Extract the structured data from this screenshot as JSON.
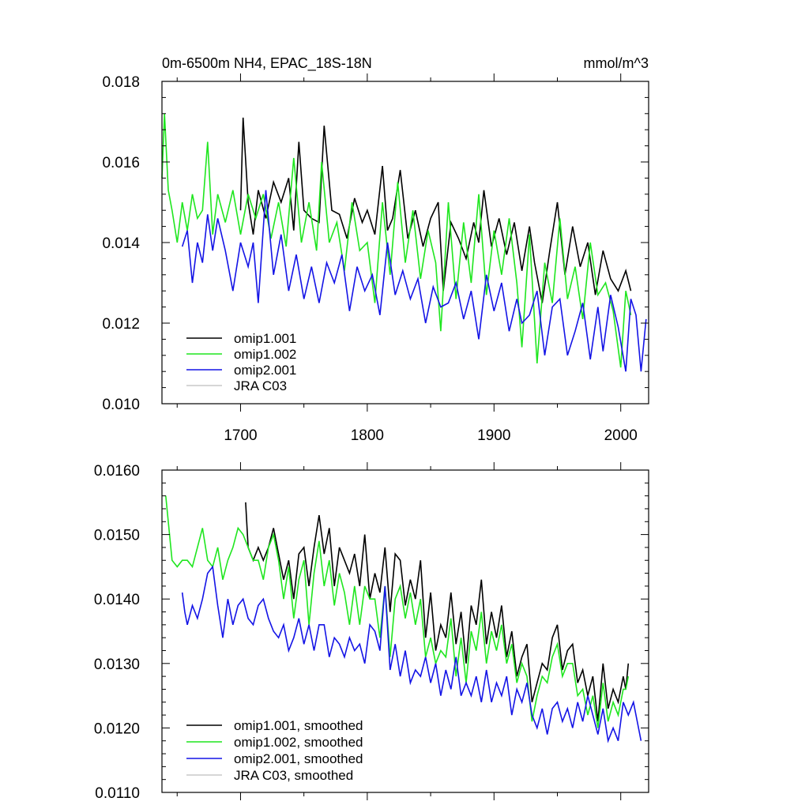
{
  "chart_data": [
    {
      "type": "line",
      "title_left": "0m-6500m NH4, EPAC_18S-18N",
      "title_right": "mmol/m^3",
      "xlim": [
        1638,
        2022
      ],
      "ylim": [
        0.01,
        0.018
      ],
      "y_ticks": [
        0.01,
        0.012,
        0.014,
        0.016,
        0.018
      ],
      "y_tick_labels": [
        "0.010",
        "0.012",
        "0.014",
        "0.016",
        "0.018"
      ],
      "x_ticks": [
        1700,
        1800,
        1900,
        2000
      ],
      "x_tick_labels": [
        "1700",
        "1800",
        "1900",
        "2000"
      ],
      "legend_position": "bottom-left",
      "series": [
        {
          "name": "omip1.001",
          "color": "#000000",
          "x": [
            1700,
            1702,
            1706,
            1710,
            1714,
            1720,
            1726,
            1732,
            1738,
            1742,
            1746,
            1750,
            1756,
            1762,
            1766,
            1772,
            1778,
            1784,
            1790,
            1796,
            1800,
            1806,
            1812,
            1816,
            1820,
            1826,
            1832,
            1838,
            1844,
            1850,
            1856,
            1860,
            1866,
            1872,
            1878,
            1884,
            1888,
            1892,
            1898,
            1904,
            1910,
            1916,
            1922,
            1928,
            1932,
            1938,
            1944,
            1950,
            1956,
            1962,
            1968,
            1974,
            1980,
            1986,
            1992,
            1998,
            2004,
            2008
          ],
          "values": [
            0.0148,
            0.0171,
            0.015,
            0.0142,
            0.0153,
            0.0146,
            0.0155,
            0.015,
            0.0156,
            0.0143,
            0.0165,
            0.0148,
            0.0146,
            0.0145,
            0.0169,
            0.0148,
            0.0147,
            0.0141,
            0.0151,
            0.0145,
            0.0148,
            0.0142,
            0.0159,
            0.0143,
            0.0146,
            0.0158,
            0.0141,
            0.0148,
            0.0139,
            0.0146,
            0.015,
            0.0128,
            0.0145,
            0.0141,
            0.0136,
            0.0145,
            0.014,
            0.0153,
            0.0139,
            0.0146,
            0.0137,
            0.0145,
            0.0133,
            0.0144,
            0.0135,
            0.0125,
            0.0138,
            0.015,
            0.0132,
            0.0144,
            0.0134,
            0.014,
            0.0127,
            0.0138,
            0.0131,
            0.0128,
            0.0133,
            0.0128
          ]
        },
        {
          "name": "omip1.002",
          "color": "#1fe61f",
          "x": [
            1638,
            1640,
            1643,
            1646,
            1650,
            1654,
            1658,
            1662,
            1666,
            1670,
            1674,
            1678,
            1682,
            1688,
            1694,
            1700,
            1706,
            1712,
            1718,
            1724,
            1730,
            1736,
            1742,
            1748,
            1754,
            1760,
            1764,
            1770,
            1776,
            1782,
            1788,
            1794,
            1800,
            1806,
            1812,
            1818,
            1824,
            1830,
            1836,
            1842,
            1848,
            1854,
            1858,
            1864,
            1870,
            1876,
            1882,
            1888,
            1894,
            1900,
            1906,
            1912,
            1918,
            1922,
            1928,
            1934,
            1940,
            1946,
            1952,
            1958,
            1964,
            1970,
            1976,
            1982,
            1988,
            1994,
            2000,
            2004,
            2008
          ],
          "values": [
            0.0156,
            0.0172,
            0.0153,
            0.0148,
            0.014,
            0.015,
            0.0143,
            0.0152,
            0.0146,
            0.0148,
            0.0165,
            0.0142,
            0.0152,
            0.0145,
            0.0153,
            0.0142,
            0.0152,
            0.0146,
            0.0152,
            0.0141,
            0.015,
            0.0139,
            0.0161,
            0.014,
            0.015,
            0.0138,
            0.016,
            0.014,
            0.0145,
            0.0133,
            0.015,
            0.0138,
            0.014,
            0.0125,
            0.015,
            0.0132,
            0.0155,
            0.0135,
            0.0148,
            0.0131,
            0.0143,
            0.0135,
            0.0118,
            0.015,
            0.0126,
            0.0145,
            0.013,
            0.0152,
            0.0127,
            0.0143,
            0.0132,
            0.0146,
            0.013,
            0.0114,
            0.0142,
            0.011,
            0.0135,
            0.0125,
            0.0146,
            0.0126,
            0.0134,
            0.0121,
            0.014,
            0.0127,
            0.013,
            0.0123,
            0.0109,
            0.0128,
            0.0122
          ]
        },
        {
          "name": "omip2.001",
          "color": "#1414e6",
          "x": [
            1654,
            1658,
            1662,
            1666,
            1670,
            1674,
            1678,
            1682,
            1688,
            1694,
            1700,
            1706,
            1710,
            1714,
            1720,
            1726,
            1732,
            1738,
            1744,
            1750,
            1756,
            1762,
            1768,
            1774,
            1780,
            1786,
            1792,
            1798,
            1804,
            1810,
            1816,
            1822,
            1828,
            1834,
            1840,
            1846,
            1852,
            1858,
            1864,
            1870,
            1876,
            1882,
            1888,
            1894,
            1900,
            1906,
            1912,
            1918,
            1922,
            1928,
            1934,
            1940,
            1946,
            1952,
            1958,
            1964,
            1970,
            1976,
            1982,
            1986,
            1992,
            1998,
            2004,
            2008,
            2012,
            2016,
            2020
          ],
          "values": [
            0.0139,
            0.0143,
            0.013,
            0.014,
            0.0135,
            0.0147,
            0.0138,
            0.0146,
            0.0138,
            0.0128,
            0.014,
            0.0134,
            0.014,
            0.0125,
            0.0153,
            0.0132,
            0.0142,
            0.0128,
            0.0137,
            0.0126,
            0.0134,
            0.0125,
            0.0135,
            0.013,
            0.0137,
            0.0123,
            0.0134,
            0.0128,
            0.0132,
            0.0122,
            0.014,
            0.0127,
            0.0133,
            0.0126,
            0.0131,
            0.012,
            0.0129,
            0.0124,
            0.0125,
            0.013,
            0.0121,
            0.0128,
            0.0116,
            0.0132,
            0.0123,
            0.013,
            0.0118,
            0.0126,
            0.012,
            0.0122,
            0.0128,
            0.0112,
            0.0124,
            0.0126,
            0.0112,
            0.0118,
            0.0125,
            0.0111,
            0.0124,
            0.0113,
            0.0127,
            0.0119,
            0.0108,
            0.0126,
            0.0122,
            0.0108,
            0.0121
          ]
        },
        {
          "name": "JRA C03",
          "color": "#c8c8c8",
          "x": [],
          "values": []
        }
      ]
    },
    {
      "type": "line",
      "xlim": [
        1638,
        2022
      ],
      "ylim": [
        0.011,
        0.016
      ],
      "y_ticks": [
        0.011,
        0.012,
        0.013,
        0.014,
        0.015,
        0.016
      ],
      "y_tick_labels": [
        "0.0110",
        "0.0120",
        "0.0130",
        "0.0140",
        "0.0150",
        "0.0160"
      ],
      "x_ticks": [
        1700,
        1800,
        1900,
        2000
      ],
      "x_tick_labels": [],
      "legend_position": "bottom-left",
      "series": [
        {
          "name": "omip1.001, smoothed",
          "color": "#000000",
          "x": [
            1704,
            1706,
            1710,
            1714,
            1718,
            1722,
            1726,
            1730,
            1734,
            1738,
            1742,
            1746,
            1750,
            1754,
            1758,
            1762,
            1766,
            1770,
            1774,
            1778,
            1782,
            1786,
            1790,
            1794,
            1798,
            1802,
            1806,
            1810,
            1814,
            1818,
            1822,
            1826,
            1830,
            1834,
            1838,
            1842,
            1846,
            1850,
            1854,
            1858,
            1862,
            1866,
            1870,
            1874,
            1878,
            1882,
            1886,
            1890,
            1894,
            1898,
            1902,
            1906,
            1910,
            1914,
            1918,
            1922,
            1926,
            1930,
            1934,
            1938,
            1942,
            1946,
            1950,
            1954,
            1958,
            1962,
            1966,
            1970,
            1974,
            1978,
            1982,
            1986,
            1990,
            1994,
            1998,
            2002,
            2004,
            2006
          ],
          "values": [
            0.0155,
            0.0148,
            0.0146,
            0.0148,
            0.0146,
            0.0148,
            0.0151,
            0.0147,
            0.0143,
            0.0146,
            0.014,
            0.0147,
            0.0148,
            0.0142,
            0.0148,
            0.0153,
            0.0147,
            0.0151,
            0.0142,
            0.0148,
            0.0146,
            0.0144,
            0.0147,
            0.0142,
            0.015,
            0.014,
            0.0144,
            0.0141,
            0.0148,
            0.0138,
            0.0147,
            0.0146,
            0.0139,
            0.0143,
            0.014,
            0.0146,
            0.0134,
            0.0141,
            0.0132,
            0.0136,
            0.0134,
            0.0141,
            0.0133,
            0.0138,
            0.013,
            0.0139,
            0.0136,
            0.0143,
            0.0133,
            0.0138,
            0.0134,
            0.0139,
            0.0131,
            0.0135,
            0.0128,
            0.0131,
            0.0133,
            0.0124,
            0.0127,
            0.013,
            0.0129,
            0.0134,
            0.0136,
            0.0129,
            0.0132,
            0.0133,
            0.0127,
            0.0129,
            0.0125,
            0.0128,
            0.0121,
            0.013,
            0.0123,
            0.0126,
            0.0124,
            0.0128,
            0.0126,
            0.013
          ]
        },
        {
          "name": "omip1.002, smoothed",
          "color": "#1fe61f",
          "x": [
            1641,
            1643,
            1646,
            1650,
            1654,
            1658,
            1662,
            1666,
            1670,
            1674,
            1678,
            1682,
            1686,
            1690,
            1694,
            1698,
            1702,
            1706,
            1710,
            1714,
            1718,
            1722,
            1726,
            1730,
            1734,
            1738,
            1742,
            1746,
            1750,
            1754,
            1758,
            1762,
            1766,
            1770,
            1774,
            1778,
            1782,
            1786,
            1790,
            1794,
            1798,
            1802,
            1806,
            1810,
            1814,
            1818,
            1822,
            1826,
            1830,
            1834,
            1838,
            1842,
            1846,
            1850,
            1854,
            1858,
            1862,
            1866,
            1870,
            1874,
            1878,
            1882,
            1886,
            1890,
            1894,
            1898,
            1902,
            1906,
            1910,
            1914,
            1918,
            1922,
            1926,
            1930,
            1934,
            1938,
            1942,
            1946,
            1950,
            1954,
            1958,
            1962,
            1966,
            1970,
            1974,
            1978,
            1982,
            1986,
            1990,
            1994,
            1998,
            2002,
            2004,
            2006
          ],
          "values": [
            0.0156,
            0.0152,
            0.0146,
            0.0145,
            0.0146,
            0.0146,
            0.0145,
            0.0148,
            0.0151,
            0.0146,
            0.0145,
            0.0148,
            0.0143,
            0.0146,
            0.0148,
            0.0151,
            0.015,
            0.0148,
            0.0146,
            0.0146,
            0.0143,
            0.0148,
            0.015,
            0.0146,
            0.014,
            0.0145,
            0.0137,
            0.0143,
            0.0146,
            0.0136,
            0.0144,
            0.0149,
            0.0142,
            0.0146,
            0.0139,
            0.0144,
            0.0141,
            0.0136,
            0.0142,
            0.0136,
            0.0142,
            0.014,
            0.014,
            0.0134,
            0.0142,
            0.0131,
            0.014,
            0.0142,
            0.0137,
            0.0141,
            0.0136,
            0.014,
            0.0131,
            0.0134,
            0.013,
            0.0132,
            0.0131,
            0.0137,
            0.0128,
            0.0134,
            0.0127,
            0.0135,
            0.0132,
            0.0138,
            0.013,
            0.0135,
            0.0132,
            0.0136,
            0.013,
            0.0133,
            0.0127,
            0.013,
            0.0128,
            0.0121,
            0.0125,
            0.0128,
            0.0127,
            0.0131,
            0.0133,
            0.0128,
            0.013,
            0.013,
            0.0125,
            0.0126,
            0.0122,
            0.0125,
            0.012,
            0.0127,
            0.0121,
            0.0124,
            0.0122,
            0.0126,
            0.0126,
            0.0128
          ]
        },
        {
          "name": "omip2.001, smoothed",
          "color": "#1414e6",
          "x": [
            1654,
            1656,
            1658,
            1662,
            1666,
            1670,
            1674,
            1678,
            1682,
            1686,
            1690,
            1694,
            1698,
            1702,
            1706,
            1710,
            1714,
            1718,
            1722,
            1726,
            1730,
            1734,
            1738,
            1742,
            1746,
            1750,
            1754,
            1758,
            1762,
            1766,
            1770,
            1774,
            1778,
            1782,
            1786,
            1790,
            1794,
            1798,
            1802,
            1806,
            1810,
            1814,
            1818,
            1822,
            1826,
            1830,
            1834,
            1838,
            1842,
            1846,
            1850,
            1854,
            1858,
            1862,
            1866,
            1870,
            1874,
            1878,
            1882,
            1886,
            1890,
            1894,
            1898,
            1902,
            1906,
            1910,
            1914,
            1918,
            1922,
            1926,
            1930,
            1934,
            1938,
            1942,
            1946,
            1950,
            1954,
            1958,
            1962,
            1966,
            1970,
            1974,
            1978,
            1982,
            1986,
            1990,
            1994,
            1998,
            2002,
            2006,
            2010,
            2014,
            2016
          ],
          "values": [
            0.0141,
            0.0138,
            0.0136,
            0.0139,
            0.0137,
            0.014,
            0.0144,
            0.0145,
            0.0139,
            0.0134,
            0.014,
            0.0136,
            0.0139,
            0.014,
            0.0137,
            0.0136,
            0.0139,
            0.014,
            0.0137,
            0.0135,
            0.0134,
            0.0136,
            0.0132,
            0.0134,
            0.0137,
            0.0133,
            0.0136,
            0.0132,
            0.0136,
            0.0136,
            0.0131,
            0.0134,
            0.0133,
            0.0131,
            0.0134,
            0.0132,
            0.0133,
            0.013,
            0.0136,
            0.0135,
            0.0132,
            0.0142,
            0.0129,
            0.0133,
            0.0128,
            0.0132,
            0.0127,
            0.0129,
            0.0128,
            0.0131,
            0.0127,
            0.013,
            0.0125,
            0.0129,
            0.0126,
            0.0131,
            0.0125,
            0.0127,
            0.0125,
            0.0128,
            0.0124,
            0.0129,
            0.0124,
            0.0127,
            0.0125,
            0.0128,
            0.0122,
            0.0126,
            0.0124,
            0.0127,
            0.0122,
            0.012,
            0.0123,
            0.0119,
            0.0123,
            0.0124,
            0.0121,
            0.0123,
            0.012,
            0.0124,
            0.0121,
            0.0125,
            0.0122,
            0.0119,
            0.0123,
            0.0118,
            0.012,
            0.0118,
            0.0124,
            0.0122,
            0.0124,
            0.012,
            0.0118
          ]
        },
        {
          "name": "JRA C03, smoothed",
          "color": "#c8c8c8",
          "x": [],
          "values": []
        }
      ]
    }
  ]
}
